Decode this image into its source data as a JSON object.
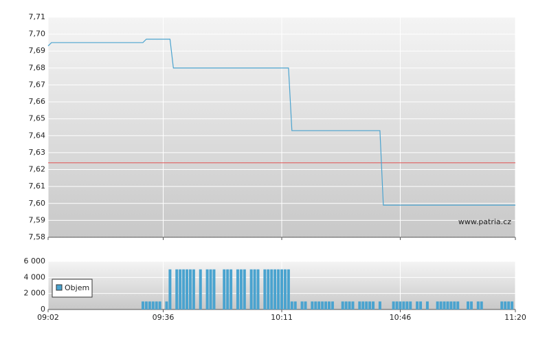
{
  "chart_data": [
    {
      "type": "line",
      "x": [
        542,
        543,
        570,
        571,
        578,
        579,
        613,
        614,
        640,
        641,
        680
      ],
      "values": [
        7.693,
        7.695,
        7.695,
        7.697,
        7.697,
        7.68,
        7.68,
        7.643,
        7.643,
        7.599,
        7.599
      ],
      "color": "#4aa3cf",
      "step": true,
      "reference_line": 7.624,
      "reference_color": "#e05050",
      "xlim": [
        542,
        680
      ],
      "ylim": [
        7.58,
        7.71
      ],
      "yticks": [
        {
          "value": 7.58,
          "label": "7,58"
        },
        {
          "value": 7.59,
          "label": "7,59"
        },
        {
          "value": 7.6,
          "label": "7,60"
        },
        {
          "value": 7.61,
          "label": "7,61"
        },
        {
          "value": 7.62,
          "label": "7,62"
        },
        {
          "value": 7.63,
          "label": "7,63"
        },
        {
          "value": 7.64,
          "label": "7,64"
        },
        {
          "value": 7.65,
          "label": "7,65"
        },
        {
          "value": 7.66,
          "label": "7,66"
        },
        {
          "value": 7.67,
          "label": "7,67"
        },
        {
          "value": 7.68,
          "label": "7,68"
        },
        {
          "value": 7.69,
          "label": "7,69"
        },
        {
          "value": 7.7,
          "label": "7,70"
        },
        {
          "value": 7.71,
          "label": "7,71"
        }
      ],
      "annotation": "www.patria.cz",
      "grid": true
    },
    {
      "type": "bar",
      "series": [
        {
          "name": "Objem",
          "color": "#4aa3cf",
          "x": [
            570,
            571,
            572,
            573,
            574,
            575,
            577,
            578,
            580,
            581,
            582,
            583,
            584,
            585,
            587,
            589,
            590,
            591,
            594,
            595,
            596,
            598,
            599,
            600,
            602,
            603,
            604,
            606,
            607,
            608,
            609,
            610,
            611,
            612,
            613,
            614,
            615,
            617,
            618,
            620,
            621,
            622,
            623,
            624,
            625,
            626,
            629,
            630,
            631,
            632,
            634,
            635,
            636,
            637,
            638,
            640,
            644,
            645,
            646,
            647,
            648,
            649,
            651,
            652,
            654,
            657,
            658,
            659,
            660,
            661,
            662,
            663,
            666,
            667,
            669,
            670,
            676,
            677,
            678,
            679
          ],
          "values": [
            1000,
            1000,
            1000,
            1000,
            1000,
            1000,
            1000,
            5000,
            5000,
            5000,
            5000,
            5000,
            5000,
            5000,
            5000,
            5000,
            5000,
            5000,
            5000,
            5000,
            5000,
            5000,
            5000,
            5000,
            5000,
            5000,
            5000,
            5000,
            5000,
            5000,
            5000,
            5000,
            5000,
            5000,
            5000,
            1000,
            1000,
            1000,
            1000,
            1000,
            1000,
            1000,
            1000,
            1000,
            1000,
            1000,
            1000,
            1000,
            1000,
            1000,
            1000,
            1000,
            1000,
            1000,
            1000,
            1000,
            1000,
            1000,
            1000,
            1000,
            1000,
            1000,
            1000,
            1000,
            1000,
            1000,
            1000,
            1000,
            1000,
            1000,
            1000,
            1000,
            1000,
            1000,
            1000,
            1000,
            1000,
            1000,
            1000,
            1000
          ]
        }
      ],
      "xlim": [
        542,
        680
      ],
      "xticks": [
        {
          "value": 542,
          "label": "09:02"
        },
        {
          "value": 576,
          "label": "09:36"
        },
        {
          "value": 611,
          "label": "10:11"
        },
        {
          "value": 646,
          "label": "10:46"
        },
        {
          "value": 680,
          "label": "11:20"
        }
      ],
      "ylim": [
        0,
        6000
      ],
      "yticks": [
        0,
        {
          "value": 2000,
          "label": "2 000"
        },
        {
          "value": 4000,
          "label": "4 000"
        },
        {
          "value": 6000,
          "label": "6 000"
        }
      ],
      "grid": true,
      "legend": "left"
    }
  ]
}
